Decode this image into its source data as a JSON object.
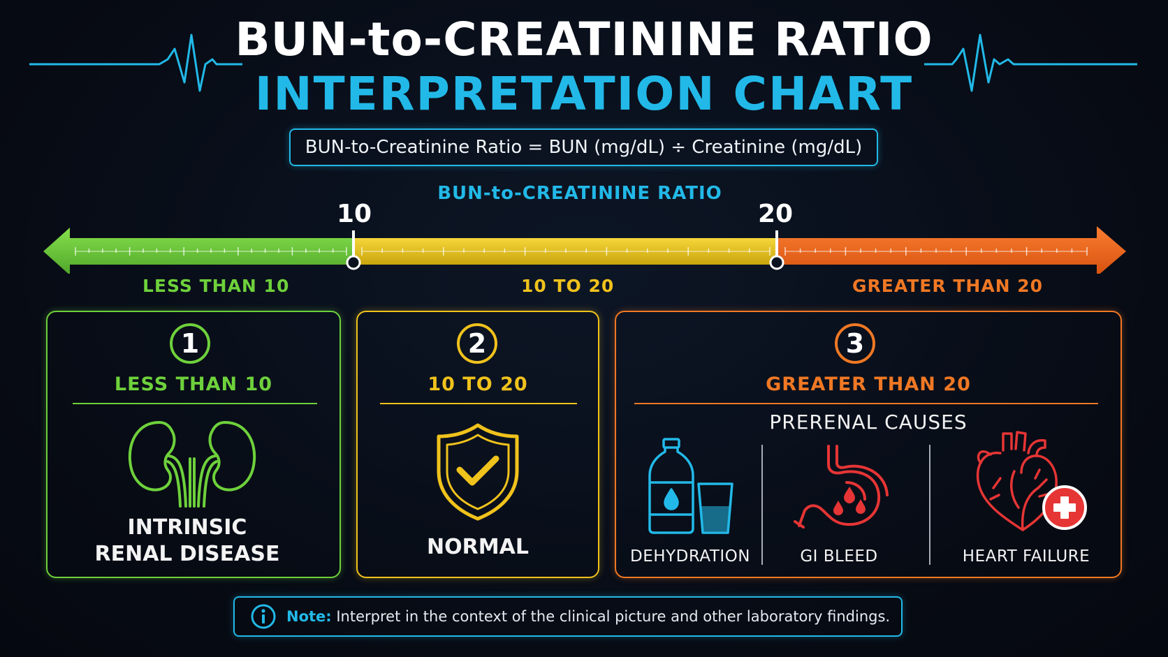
{
  "title": {
    "line1": "BUN-to-CREATININE RATIO",
    "line2": "INTERPRETATION CHART"
  },
  "formula": "BUN-to-Creatinine Ratio = BUN (mg/dL) ÷ Creatinine (mg/dL)",
  "scale": {
    "title": "BUN-to-CREATININE RATIO",
    "marker_low": "10",
    "marker_high": "20",
    "ranges": [
      {
        "label": "LESS THAN 10",
        "color": "#6ed13b"
      },
      {
        "label": "10 TO 20",
        "color": "#f0c21c"
      },
      {
        "label": "GREATER THAN 20",
        "color": "#f07824"
      }
    ]
  },
  "cards": [
    {
      "number": "1",
      "range": "LESS THAN 10",
      "line1": "INTRINSIC",
      "line2": "RENAL DISEASE",
      "icon": "kidneys-icon",
      "color": "#6ed13b"
    },
    {
      "number": "2",
      "range": "10 TO 20",
      "label": "NORMAL",
      "icon": "shield-check-icon",
      "color": "#f0c21c"
    },
    {
      "number": "3",
      "range": "GREATER THAN 20",
      "subtitle": "PRERENAL CAUSES",
      "color": "#f07824",
      "causes": [
        {
          "label": "DEHYDRATION",
          "icon": "water-bottle-glass-icon"
        },
        {
          "label": "GI BLEED",
          "icon": "stomach-bleed-icon"
        },
        {
          "label": "HEART FAILURE",
          "icon": "heart-medical-icon"
        }
      ]
    }
  ],
  "note": {
    "label": "Note:",
    "text": " Interpret in the context of the clinical picture and other laboratory findings.",
    "icon": "info-icon"
  }
}
